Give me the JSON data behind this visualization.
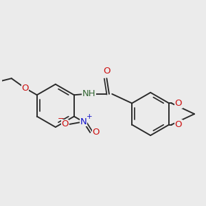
{
  "background_color": "#ebebeb",
  "bond_color": "#2a2a2a",
  "bond_width": 1.4,
  "dbo": 0.055,
  "figsize": [
    3.0,
    3.0
  ],
  "dpi": 100,
  "colors": {
    "C": "#2a2a2a",
    "N": "#1010cc",
    "O": "#cc1010",
    "NH": "#336633"
  },
  "font_size": 9.5
}
